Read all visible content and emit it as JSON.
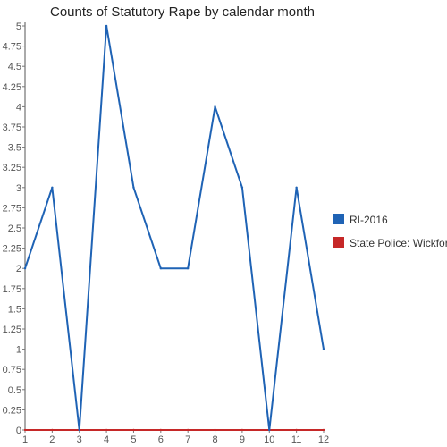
{
  "chart_data": {
    "type": "line",
    "title": "Counts of Statutory Rape by calendar month",
    "xlabel": "",
    "ylabel": "",
    "categories": [
      "1",
      "2",
      "3",
      "4",
      "5",
      "6",
      "7",
      "8",
      "9",
      "10",
      "11",
      "12"
    ],
    "ylim": [
      0,
      5
    ],
    "yticks": [
      "0",
      "0.25",
      "0.5",
      "0.75",
      "1",
      "1.25",
      "1.5",
      "1.75",
      "2",
      "2.25",
      "2.5",
      "2.75",
      "3",
      "3.25",
      "3.5",
      "3.75",
      "4",
      "4.25",
      "4.5",
      "4.75",
      "5"
    ],
    "grid": false,
    "legend_position": "right",
    "series": [
      {
        "name": "RI-2016",
        "color": "#1f63b5",
        "values": [
          2,
          3,
          0,
          5,
          3,
          2,
          2,
          4,
          3,
          0,
          3,
          1
        ]
      },
      {
        "name": "State Police: Wickford",
        "color": "#c62828",
        "values": [
          0,
          0,
          0,
          0,
          0,
          0,
          0,
          0,
          0,
          0,
          0,
          0
        ]
      }
    ]
  }
}
